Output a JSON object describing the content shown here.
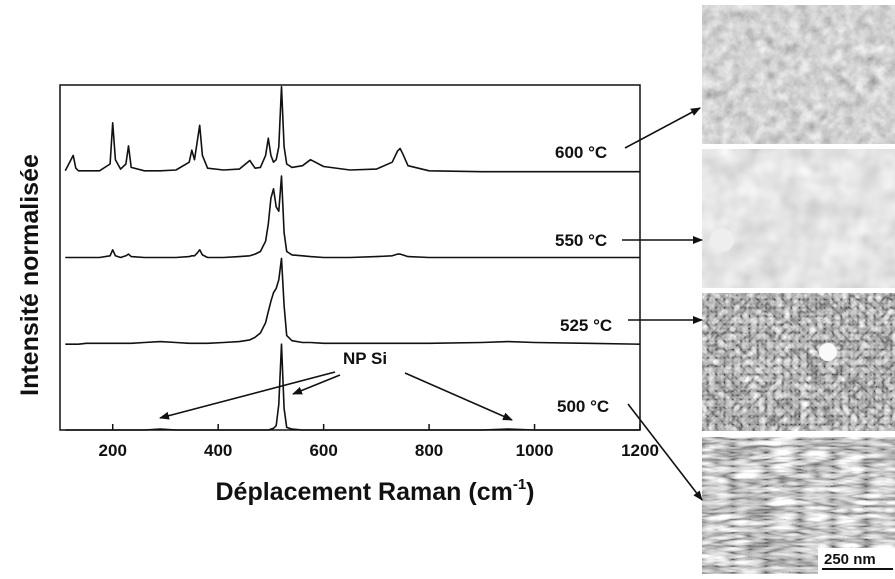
{
  "chart_data": {
    "type": "line",
    "xlabel": "Déplacement Raman (cm",
    "xlabel_sup": "-1",
    "xlabel_end": ")",
    "ylabel": "Intensité normalisée",
    "annotation": "NP Si",
    "scale_bar": "250 nm",
    "xlim": [
      100,
      1200
    ],
    "xticks": [
      200,
      400,
      600,
      800,
      1000,
      1200
    ],
    "ylim": [
      0,
      4.02
    ],
    "x": [
      110,
      125,
      130,
      135,
      150,
      175,
      195,
      200,
      205,
      215,
      225,
      230,
      235,
      260,
      290,
      320,
      345,
      350,
      355,
      360,
      365,
      370,
      380,
      410,
      440,
      460,
      470,
      480,
      490,
      495,
      500,
      505,
      510,
      515,
      520,
      525,
      530,
      540,
      560,
      575,
      600,
      650,
      700,
      730,
      740,
      745,
      750,
      760,
      800,
      900,
      950,
      1000,
      1100,
      1200
    ],
    "series": [
      {
        "name": "600 °C",
        "color": "#111111",
        "offset": 3,
        "values": [
          0.02,
          0.2,
          0.05,
          0.02,
          0.02,
          0.02,
          0.1,
          0.58,
          0.15,
          0.04,
          0.1,
          0.31,
          0.06,
          0.02,
          0.02,
          0.03,
          0.12,
          0.26,
          0.15,
          0.35,
          0.55,
          0.2,
          0.05,
          0.03,
          0.04,
          0.14,
          0.05,
          0.06,
          0.2,
          0.4,
          0.2,
          0.12,
          0.15,
          0.3,
          1.0,
          0.3,
          0.1,
          0.06,
          0.08,
          0.15,
          0.07,
          0.03,
          0.04,
          0.12,
          0.25,
          0.28,
          0.22,
          0.08,
          0.02,
          0.01,
          0.01,
          0.01,
          0.01,
          0.01
        ]
      },
      {
        "name": "550 °C",
        "color": "#111111",
        "offset": 2,
        "values": [
          0.01,
          0.01,
          0.01,
          0.01,
          0.01,
          0.01,
          0.03,
          0.1,
          0.03,
          0.01,
          0.03,
          0.05,
          0.02,
          0.01,
          0.01,
          0.01,
          0.02,
          0.03,
          0.03,
          0.06,
          0.1,
          0.04,
          0.01,
          0.01,
          0.02,
          0.03,
          0.05,
          0.08,
          0.2,
          0.4,
          0.7,
          0.81,
          0.6,
          0.55,
          0.96,
          0.3,
          0.08,
          0.04,
          0.03,
          0.02,
          0.01,
          0.01,
          0.02,
          0.03,
          0.05,
          0.05,
          0.04,
          0.02,
          0.01,
          0.01,
          0.01,
          0.01,
          0.01,
          0.01
        ]
      },
      {
        "name": "525 °C",
        "color": "#111111",
        "offset": 1,
        "values": [
          0,
          0,
          0,
          0,
          0.01,
          0.01,
          0.01,
          0.01,
          0.01,
          0.01,
          0.01,
          0.01,
          0.01,
          0.02,
          0.03,
          0.02,
          0.01,
          0.01,
          0.01,
          0.01,
          0.01,
          0.01,
          0.01,
          0.02,
          0.03,
          0.05,
          0.08,
          0.13,
          0.25,
          0.38,
          0.5,
          0.6,
          0.65,
          0.75,
          1.0,
          0.45,
          0.1,
          0.04,
          0.02,
          0.02,
          0.01,
          0.01,
          0.01,
          0.01,
          0.01,
          0.01,
          0.01,
          0.01,
          0.01,
          0.02,
          0.03,
          0.02,
          0.01,
          0
        ]
      },
      {
        "name": "500 °C",
        "color": "#111111",
        "offset": 0,
        "values": [
          0,
          0,
          0,
          0,
          0,
          0,
          0,
          0,
          0,
          0,
          0,
          0,
          0,
          0,
          0.01,
          0,
          0,
          0,
          0,
          0,
          0,
          0,
          0,
          0,
          0,
          0,
          0,
          0,
          0,
          0,
          0.01,
          0.02,
          0.05,
          0.3,
          1.0,
          0.25,
          0.03,
          0.01,
          0,
          0,
          0,
          0,
          0,
          0,
          0,
          0,
          0,
          0,
          0,
          0,
          0.01,
          0,
          0,
          0
        ]
      }
    ]
  }
}
